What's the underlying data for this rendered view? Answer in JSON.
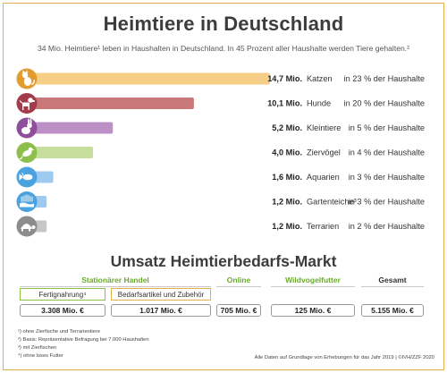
{
  "title": "Heimtiere in Deutschland",
  "subtitle": "34 Mio. Heimtiere¹ leben in Haushalten in Deutschland. In 45 Prozent aller Haushalte werden Tiere gehalten.²",
  "chart_data": {
    "type": "bar",
    "orientation": "horizontal",
    "categories": [
      "Katzen",
      "Hunde",
      "Kleintiere",
      "Ziervögel",
      "Aquarien",
      "Gartenteiche³",
      "Terrarien"
    ],
    "values": [
      14.7,
      10.1,
      5.2,
      4.0,
      1.6,
      1.2,
      1.2
    ],
    "value_labels": [
      "14,7 Mio.",
      "10,1 Mio.",
      "5,2 Mio.",
      "4,0 Mio.",
      "1,6 Mio.",
      "1,2 Mio.",
      "1,2 Mio."
    ],
    "household_share_labels": [
      "in 23 % der Haushalte",
      "in 20 % der Haushalte",
      "in 5 % der Haushalte",
      "in 4 % der Haushalte",
      "in 3 % der Haushalte",
      "in 3 % der Haushalte",
      "in 2 % der Haushalte"
    ],
    "icons": [
      "cat-icon",
      "dog-icon",
      "rabbit-icon",
      "bird-icon",
      "fish-icon",
      "pond-fish-icon",
      "turtle-icon"
    ],
    "bar_colors": [
      "#f5cf86",
      "#c87878",
      "#bc90c6",
      "#c6e09b",
      "#9fcaf0",
      "#9fcaf0",
      "#c6c6c6"
    ],
    "icon_colors": [
      "#e29b2f",
      "#a23c4a",
      "#8e4e9a",
      "#8cbf4b",
      "#4aa3de",
      "#4aa3de",
      "#8c8c8c"
    ],
    "xlabel": "",
    "ylabel": "",
    "grid": false,
    "legend": "none"
  },
  "market": {
    "title": "Umsatz Heimtierbedarfs-Markt",
    "columns": [
      {
        "label": "Stationärer Handel"
      },
      {
        "label": "Online"
      },
      {
        "label": "Wildvogelfutter"
      },
      {
        "label": "Gesamt"
      }
    ],
    "sub_labels": [
      "Fertignahrung⁴",
      "Bedarfsartikel und Zubehör"
    ],
    "values": [
      "3.308 Mio. €",
      "1.017 Mio. €",
      "705 Mio. €",
      "125 Mio. €",
      "5.155 Mio. €"
    ]
  },
  "footnotes": [
    "¹) ohne Zierfische und Terrarientiere",
    "²) Basis: Repräsentative Befragung bei 7.000 Haushalten",
    "³) mit Zierfischen",
    "⁴) ohne loses Futter"
  ],
  "source": "Alle Daten auf Grundlage von Erhebungen für das Jahr 2019 | ©IVH/ZZF 2020"
}
